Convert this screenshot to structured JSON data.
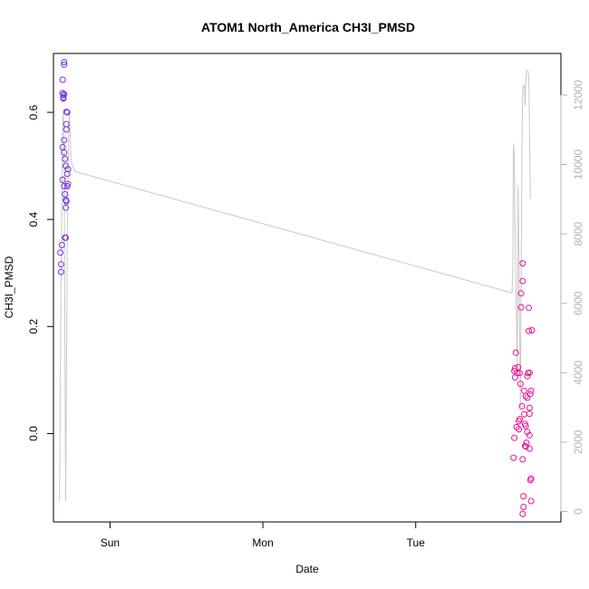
{
  "chart_data": {
    "type": "scatter",
    "title": "ATOM1 North_America CH3I_PMSD",
    "xlabel": "Date",
    "ylabel": "CH3I_PMSD",
    "x_ticks": [
      "Sun",
      "Mon",
      "Tue"
    ],
    "y_ticks": [
      "0.0",
      "0.2",
      "0.4",
      "0.6"
    ],
    "y2_ticks": [
      "0",
      "2000",
      "4000",
      "6000",
      "8000",
      "10000",
      "12000"
    ],
    "xlim": [
      -0.37,
      2.95
    ],
    "ylim": [
      -0.165,
      0.71
    ],
    "y2lim": [
      -300,
      13200
    ],
    "grid": false,
    "colors": {
      "early": "#7733dd",
      "late": "#ee1199",
      "altitude": "#c8c8c8",
      "secondary_axis": "#b3b3b3"
    },
    "series": [
      {
        "points": [
          {
            "x": -0.32,
            "y": 0.302
          },
          {
            "x": -0.32,
            "y": 0.316
          },
          {
            "x": -0.325,
            "y": 0.338
          },
          {
            "x": -0.315,
            "y": 0.352
          },
          {
            "x": -0.31,
            "y": 0.474
          },
          {
            "x": -0.31,
            "y": 0.535
          },
          {
            "x": -0.3,
            "y": 0.525
          },
          {
            "x": -0.31,
            "y": 0.636
          },
          {
            "x": -0.305,
            "y": 0.626
          },
          {
            "x": -0.305,
            "y": 0.632
          },
          {
            "x": -0.305,
            "y": 0.628
          },
          {
            "x": -0.3,
            "y": 0.634
          },
          {
            "x": -0.31,
            "y": 0.661
          },
          {
            "x": -0.3,
            "y": 0.689
          },
          {
            "x": -0.3,
            "y": 0.694
          },
          {
            "x": -0.3,
            "y": 0.548
          },
          {
            "x": -0.295,
            "y": 0.513
          },
          {
            "x": -0.3,
            "y": 0.462
          },
          {
            "x": -0.295,
            "y": 0.447
          },
          {
            "x": -0.29,
            "y": 0.5
          },
          {
            "x": -0.285,
            "y": 0.434
          },
          {
            "x": -0.29,
            "y": 0.422
          },
          {
            "x": -0.29,
            "y": 0.436
          },
          {
            "x": -0.29,
            "y": 0.366
          },
          {
            "x": -0.295,
            "y": 0.366
          },
          {
            "x": -0.285,
            "y": 0.601
          },
          {
            "x": -0.28,
            "y": 0.6
          },
          {
            "x": -0.285,
            "y": 0.578
          },
          {
            "x": -0.285,
            "y": 0.568
          },
          {
            "x": -0.275,
            "y": 0.494
          },
          {
            "x": -0.28,
            "y": 0.485
          },
          {
            "x": -0.275,
            "y": 0.466
          },
          {
            "x": -0.28,
            "y": 0.462
          }
        ]
      },
      {
        "points": [
          {
            "x": 2.64,
            "y": -0.045
          },
          {
            "x": 2.645,
            "y": -0.008
          },
          {
            "x": 2.645,
            "y": 0.117
          },
          {
            "x": 2.65,
            "y": 0.122
          },
          {
            "x": 2.65,
            "y": 0.105
          },
          {
            "x": 2.655,
            "y": 0.151
          },
          {
            "x": 2.66,
            "y": 0.012
          },
          {
            "x": 2.665,
            "y": 0.113
          },
          {
            "x": 2.67,
            "y": 0.124
          },
          {
            "x": 2.675,
            "y": 0.023
          },
          {
            "x": 2.675,
            "y": 0.008
          },
          {
            "x": 2.68,
            "y": 0.113
          },
          {
            "x": 2.68,
            "y": 0.027
          },
          {
            "x": 2.685,
            "y": 0.093
          },
          {
            "x": 2.69,
            "y": 0.262
          },
          {
            "x": 2.69,
            "y": 0.236
          },
          {
            "x": 2.7,
            "y": 0.318
          },
          {
            "x": 2.7,
            "y": 0.285
          },
          {
            "x": 2.695,
            "y": 0.051
          },
          {
            "x": 2.7,
            "y": -0.048
          },
          {
            "x": 2.705,
            "y": -0.117
          },
          {
            "x": 2.705,
            "y": -0.137
          },
          {
            "x": 2.7,
            "y": -0.15
          },
          {
            "x": 2.71,
            "y": 0.08
          },
          {
            "x": 2.715,
            "y": 0.018
          },
          {
            "x": 2.71,
            "y": 0.036
          },
          {
            "x": 2.72,
            "y": 0.07
          },
          {
            "x": 2.72,
            "y": 0.014
          },
          {
            "x": 2.715,
            "y": -0.023
          },
          {
            "x": 2.72,
            "y": -0.024
          },
          {
            "x": 2.725,
            "y": -0.017
          },
          {
            "x": 2.73,
            "y": 0.003
          },
          {
            "x": 2.73,
            "y": 0.067
          },
          {
            "x": 2.73,
            "y": 0.107
          },
          {
            "x": 2.735,
            "y": 0.113
          },
          {
            "x": 2.74,
            "y": 0.235
          },
          {
            "x": 2.74,
            "y": 0.192
          },
          {
            "x": 2.745,
            "y": 0.114
          },
          {
            "x": 2.75,
            "y": 0.074
          },
          {
            "x": 2.745,
            "y": 0.048
          },
          {
            "x": 2.745,
            "y": 0.037
          },
          {
            "x": 2.745,
            "y": -0.028
          },
          {
            "x": 2.745,
            "y": -0.003
          },
          {
            "x": 2.75,
            "y": -0.087
          },
          {
            "x": 2.755,
            "y": -0.084
          },
          {
            "x": 2.755,
            "y": -0.126
          },
          {
            "x": 2.76,
            "y": 0.193
          },
          {
            "x": 2.755,
            "y": 0.08
          }
        ]
      }
    ],
    "altitude_line": [
      {
        "x": -0.33,
        "y": 300
      },
      {
        "x": -0.32,
        "y": 7000
      },
      {
        "x": -0.31,
        "y": 11200
      },
      {
        "x": -0.305,
        "y": 11500
      },
      {
        "x": -0.3,
        "y": 10200
      },
      {
        "x": -0.295,
        "y": 4500
      },
      {
        "x": -0.29,
        "y": 300
      },
      {
        "x": -0.28,
        "y": 7600
      },
      {
        "x": -0.27,
        "y": 11000
      },
      {
        "x": -0.265,
        "y": 11500
      },
      {
        "x": -0.255,
        "y": 10100
      },
      {
        "x": -0.23,
        "y": 9800
      },
      {
        "x": 2.63,
        "y": 6300
      },
      {
        "x": 2.635,
        "y": 7000
      },
      {
        "x": 2.64,
        "y": 10600
      },
      {
        "x": 2.645,
        "y": 10300
      },
      {
        "x": 2.65,
        "y": 8000
      },
      {
        "x": 2.665,
        "y": 4200
      },
      {
        "x": 2.67,
        "y": 9400
      },
      {
        "x": 2.675,
        "y": 7500
      },
      {
        "x": 2.685,
        "y": 3000
      },
      {
        "x": 2.69,
        "y": 6500
      },
      {
        "x": 2.695,
        "y": 10500
      },
      {
        "x": 2.7,
        "y": 12200
      },
      {
        "x": 2.71,
        "y": 12300
      },
      {
        "x": 2.715,
        "y": 11700
      },
      {
        "x": 2.72,
        "y": 12300
      },
      {
        "x": 2.725,
        "y": 12700
      },
      {
        "x": 2.735,
        "y": 12700
      },
      {
        "x": 2.74,
        "y": 12500
      },
      {
        "x": 2.745,
        "y": 10800
      },
      {
        "x": 2.75,
        "y": 9000
      }
    ]
  }
}
